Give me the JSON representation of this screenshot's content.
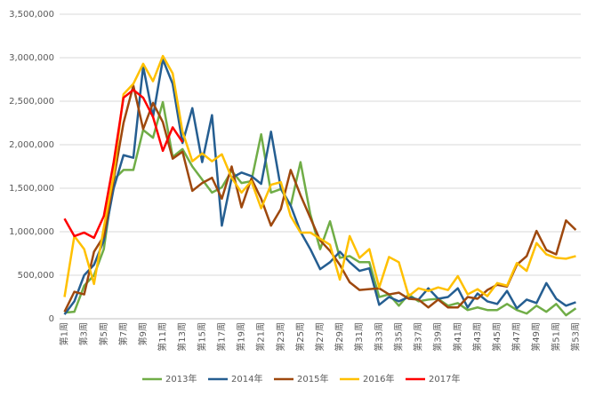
{
  "chart_data": {
    "type": "line",
    "categories": [
      "第1周",
      null,
      "第3周",
      null,
      "第5周",
      null,
      "第7周",
      null,
      "第9周",
      null,
      "第11周",
      null,
      "第13周",
      null,
      "第15周",
      null,
      "第17周",
      null,
      "第19周",
      null,
      "第21周",
      null,
      "第23周",
      null,
      "第25周",
      null,
      "第27周",
      null,
      "第29周",
      null,
      "第31周",
      null,
      "第33周",
      null,
      "第35周",
      null,
      "第37周",
      null,
      "第39周",
      null,
      "第41周",
      null,
      "第43周",
      null,
      "第45周",
      null,
      "第47周",
      null,
      "第49周",
      null,
      "第51周",
      null,
      "第53周"
    ],
    "series": [
      {
        "name": "2013年",
        "color": "#70ad47",
        "values": [
          70000,
          80000,
          380000,
          500000,
          800000,
          1600000,
          1710000,
          1710000,
          2170000,
          2080000,
          2490000,
          1860000,
          1950000,
          1750000,
          1600000,
          1450000,
          1510000,
          1700000,
          1560000,
          1580000,
          2120000,
          1450000,
          1490000,
          1300000,
          1800000,
          1200000,
          800000,
          1120000,
          700000,
          720000,
          650000,
          650000,
          250000,
          280000,
          150000,
          280000,
          200000,
          220000,
          230000,
          150000,
          180000,
          100000,
          130000,
          100000,
          100000,
          170000,
          100000,
          60000,
          150000,
          80000,
          170000,
          40000,
          120000
        ]
      },
      {
        "name": "2014年",
        "color": "#255e91",
        "values": [
          50000,
          200000,
          500000,
          620000,
          900000,
          1500000,
          1880000,
          1850000,
          2900000,
          2320000,
          2980000,
          2700000,
          2020000,
          2420000,
          1800000,
          2340000,
          1070000,
          1620000,
          1680000,
          1640000,
          1550000,
          2150000,
          1500000,
          1300000,
          1000000,
          800000,
          570000,
          650000,
          770000,
          650000,
          550000,
          580000,
          160000,
          250000,
          200000,
          250000,
          220000,
          350000,
          230000,
          250000,
          350000,
          130000,
          290000,
          200000,
          170000,
          320000,
          120000,
          220000,
          180000,
          410000,
          230000,
          150000,
          190000
        ]
      },
      {
        "name": "2015年",
        "color": "#9e480e",
        "values": [
          80000,
          310000,
          280000,
          770000,
          950000,
          1600000,
          2250000,
          2680000,
          2180000,
          2480000,
          2260000,
          1840000,
          1920000,
          1470000,
          1560000,
          1620000,
          1380000,
          1750000,
          1280000,
          1610000,
          1380000,
          1070000,
          1260000,
          1710000,
          1420000,
          1160000,
          900000,
          780000,
          620000,
          420000,
          330000,
          340000,
          350000,
          280000,
          300000,
          230000,
          220000,
          130000,
          220000,
          130000,
          130000,
          250000,
          230000,
          330000,
          390000,
          370000,
          620000,
          720000,
          1010000,
          790000,
          740000,
          1130000,
          1020000
        ]
      },
      {
        "name": "2016年",
        "color": "#ffc000",
        "values": [
          250000,
          950000,
          800000,
          400000,
          1050000,
          1650000,
          2580000,
          2700000,
          2930000,
          2730000,
          3020000,
          2820000,
          2150000,
          1810000,
          1900000,
          1810000,
          1890000,
          1620000,
          1450000,
          1580000,
          1270000,
          1540000,
          1570000,
          1180000,
          990000,
          990000,
          920000,
          850000,
          450000,
          950000,
          700000,
          800000,
          360000,
          710000,
          650000,
          260000,
          350000,
          320000,
          360000,
          330000,
          490000,
          280000,
          340000,
          260000,
          410000,
          380000,
          640000,
          550000,
          870000,
          740000,
          700000,
          690000,
          720000
        ]
      },
      {
        "name": "2017年",
        "color": "#ff0000",
        "values": [
          1150000,
          950000,
          990000,
          930000,
          1180000,
          1800000,
          2540000,
          2630000,
          2540000,
          2320000,
          1930000,
          2200000,
          2030000,
          null,
          null,
          null,
          null,
          null,
          null,
          null,
          null,
          null,
          null,
          null,
          null,
          null,
          null,
          null,
          null,
          null,
          null,
          null,
          null,
          null,
          null,
          null,
          null,
          null,
          null,
          null,
          null,
          null,
          null,
          null,
          null,
          null,
          null,
          null,
          null,
          null,
          null,
          null,
          null
        ]
      }
    ],
    "ylim": [
      0,
      3500000
    ],
    "yticks": [
      0,
      {
        "value": 500000,
        "label": "500,000"
      },
      {
        "value": 1000000,
        "label": "1,000,000"
      },
      {
        "value": 1500000,
        "label": "1,500,000"
      },
      {
        "value": 2000000,
        "label": "2,000,000"
      },
      {
        "value": 2500000,
        "label": "2,500,000"
      },
      {
        "value": 3000000,
        "label": "3,000,000"
      },
      {
        "value": 3500000,
        "label": "3,500,000"
      }
    ],
    "grid": true,
    "legend": "bottom"
  }
}
